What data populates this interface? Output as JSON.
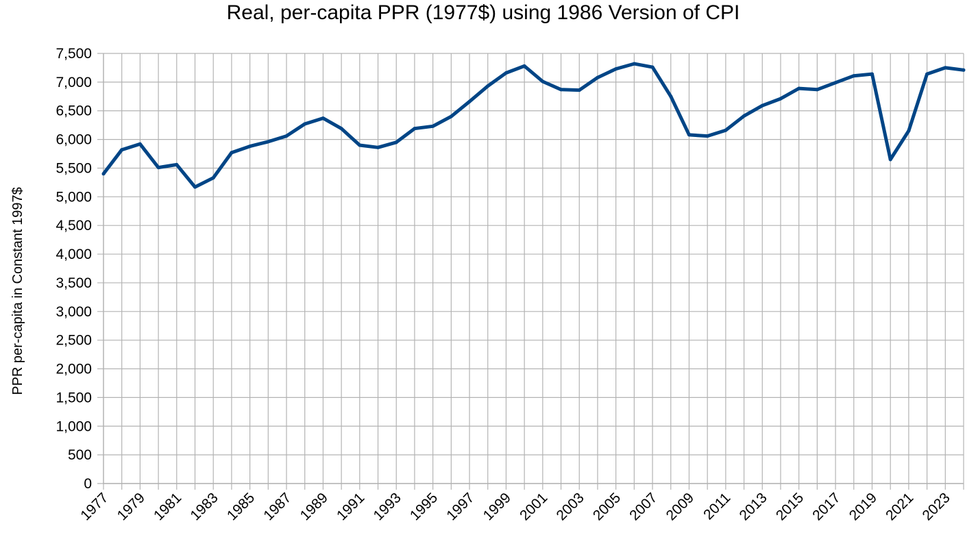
{
  "chart_data": {
    "type": "line",
    "title": "Real, per-capita PPR (1977$) using 1986 Version of CPI",
    "xlabel": "",
    "ylabel": "PPR per-capita in Constant 1997$",
    "ylim": [
      0,
      7500
    ],
    "yticks": [
      0,
      500,
      1000,
      1500,
      2000,
      2500,
      3000,
      3500,
      4000,
      4500,
      5000,
      5500,
      6000,
      6500,
      7000,
      7500
    ],
    "ytick_labels": [
      "0",
      "500",
      "1,000",
      "1,500",
      "2,000",
      "2,500",
      "3,000",
      "3,500",
      "4,000",
      "4,500",
      "5,000",
      "5,500",
      "6,000",
      "6,500",
      "7,000",
      "7,500"
    ],
    "xlim": [
      1977,
      2024
    ],
    "xtick_labels": [
      "1977",
      "1979",
      "1981",
      "1983",
      "1985",
      "1987",
      "1989",
      "1991",
      "1993",
      "1995",
      "1997",
      "1999",
      "2001",
      "2003",
      "2005",
      "2007",
      "2009",
      "2011",
      "2013",
      "2015",
      "2017",
      "2019",
      "2021",
      "2023"
    ],
    "grid": true,
    "line_color": "#004586",
    "grid_color": "#b3b3b3",
    "series": [
      {
        "name": "Real per-capita PPR",
        "x": [
          1977,
          1978,
          1979,
          1980,
          1981,
          1982,
          1983,
          1984,
          1985,
          1986,
          1987,
          1988,
          1989,
          1990,
          1991,
          1992,
          1993,
          1994,
          1995,
          1996,
          1997,
          1998,
          1999,
          2000,
          2001,
          2002,
          2003,
          2004,
          2005,
          2006,
          2007,
          2008,
          2009,
          2010,
          2011,
          2012,
          2013,
          2014,
          2015,
          2016,
          2017,
          2018,
          2019,
          2020,
          2021,
          2022,
          2023,
          2024
        ],
        "values": [
          5400,
          5820,
          5920,
          5510,
          5560,
          5170,
          5330,
          5770,
          5880,
          5960,
          6060,
          6270,
          6370,
          6190,
          5900,
          5860,
          5950,
          6190,
          6230,
          6400,
          6660,
          6930,
          7160,
          7280,
          7010,
          6870,
          6860,
          7080,
          7230,
          7320,
          7260,
          6750,
          6080,
          6060,
          6160,
          6410,
          6590,
          6710,
          6890,
          6870,
          6990,
          7110,
          7140,
          5650,
          6150,
          7140,
          7250,
          7210
        ]
      }
    ]
  }
}
